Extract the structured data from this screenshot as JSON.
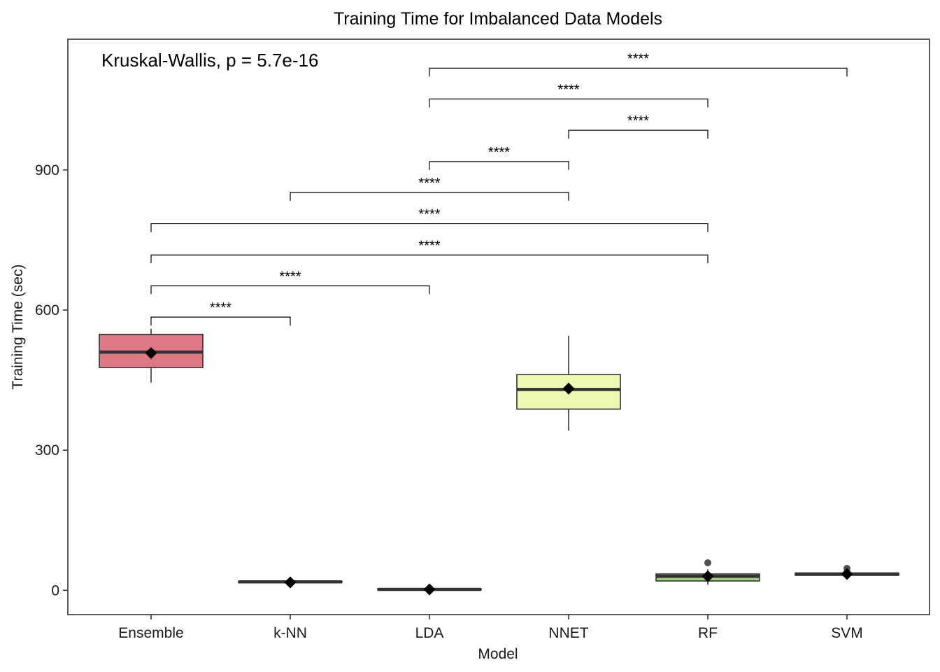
{
  "chart_data": {
    "type": "box",
    "title": "Training Time for Imbalanced Data Models",
    "xlabel": "Model",
    "ylabel": "Training Time (sec)",
    "ylim": [
      -52,
      1180
    ],
    "yticks": [
      0,
      300,
      600,
      900
    ],
    "grid": false,
    "legend": "none",
    "annotation": "Kruskal-Wallis, p = 5.7e-16",
    "categories": [
      "Ensemble",
      "k-NN",
      "LDA",
      "NNET",
      "RF",
      "SVM"
    ],
    "boxes": [
      {
        "name": "Ensemble",
        "min": 445,
        "q1": 477,
        "median": 510,
        "q3": 548,
        "max": 560,
        "mean": 508,
        "outliers": [],
        "color": "#e07784"
      },
      {
        "name": "k-NN",
        "min": 16,
        "q1": 17,
        "median": 18,
        "q3": 19,
        "max": 20,
        "mean": 17,
        "outliers": [],
        "color": "#ffffff"
      },
      {
        "name": "LDA",
        "min": 1,
        "q1": 1,
        "median": 2,
        "q3": 3,
        "max": 3,
        "mean": 2,
        "outliers": [],
        "color": "#ffffff"
      },
      {
        "name": "NNET",
        "min": 342,
        "q1": 388,
        "median": 430,
        "q3": 462,
        "max": 545,
        "mean": 432,
        "outliers": [],
        "color": "#eef8b3"
      },
      {
        "name": "RF",
        "min": 12,
        "q1": 20,
        "median": 30,
        "q3": 35,
        "max": 45,
        "mean": 30,
        "outliers": [
          59
        ],
        "color": "#9fd17e"
      },
      {
        "name": "SVM",
        "min": 30,
        "q1": 32,
        "median": 35,
        "q3": 37,
        "max": 40,
        "mean": 35,
        "outliers": [
          47
        ],
        "color": "#ffffff"
      }
    ],
    "comparisons": [
      {
        "from": "Ensemble",
        "to": "k-NN",
        "y": 585,
        "label": "****"
      },
      {
        "from": "Ensemble",
        "to": "LDA",
        "y": 652,
        "label": "****"
      },
      {
        "from": "Ensemble",
        "to": "RF",
        "y": 718,
        "label": "****"
      },
      {
        "from": "Ensemble",
        "to": "RF",
        "y": 785,
        "label": "****"
      },
      {
        "from": "k-NN",
        "to": "NNET",
        "y": 852,
        "label": "****"
      },
      {
        "from": "LDA",
        "to": "NNET",
        "y": 918,
        "label": "****"
      },
      {
        "from": "NNET",
        "to": "RF",
        "y": 985,
        "label": "****"
      },
      {
        "from": "LDA",
        "to": "RF",
        "y": 1052,
        "label": "****"
      },
      {
        "from": "LDA",
        "to": "SVM",
        "y": 1118,
        "label": "****"
      }
    ]
  }
}
